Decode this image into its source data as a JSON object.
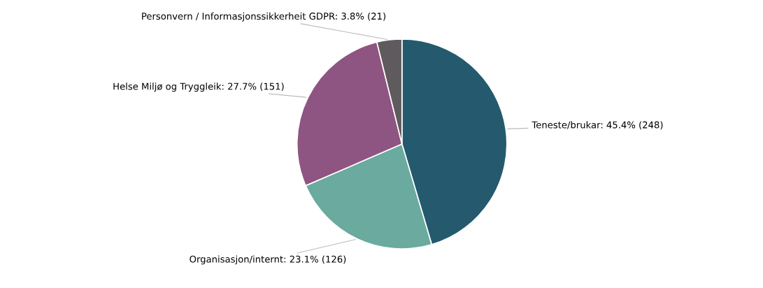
{
  "chart_data": {
    "type": "pie",
    "categories": [
      "Teneste/brukar: 45.4% (248)",
      "Organisasjon/internt: 23.1% (126)",
      "Helse Miljø og Tryggleik: 27.7% (151)",
      "Personvern / Informasjonssikkerheit GDPR: 3.8% (21)"
    ],
    "values": [
      248,
      126,
      151,
      21
    ],
    "colors": [
      "#255a6e",
      "#6aaa9f",
      "#8e5482",
      "#5f5a5e"
    ]
  }
}
